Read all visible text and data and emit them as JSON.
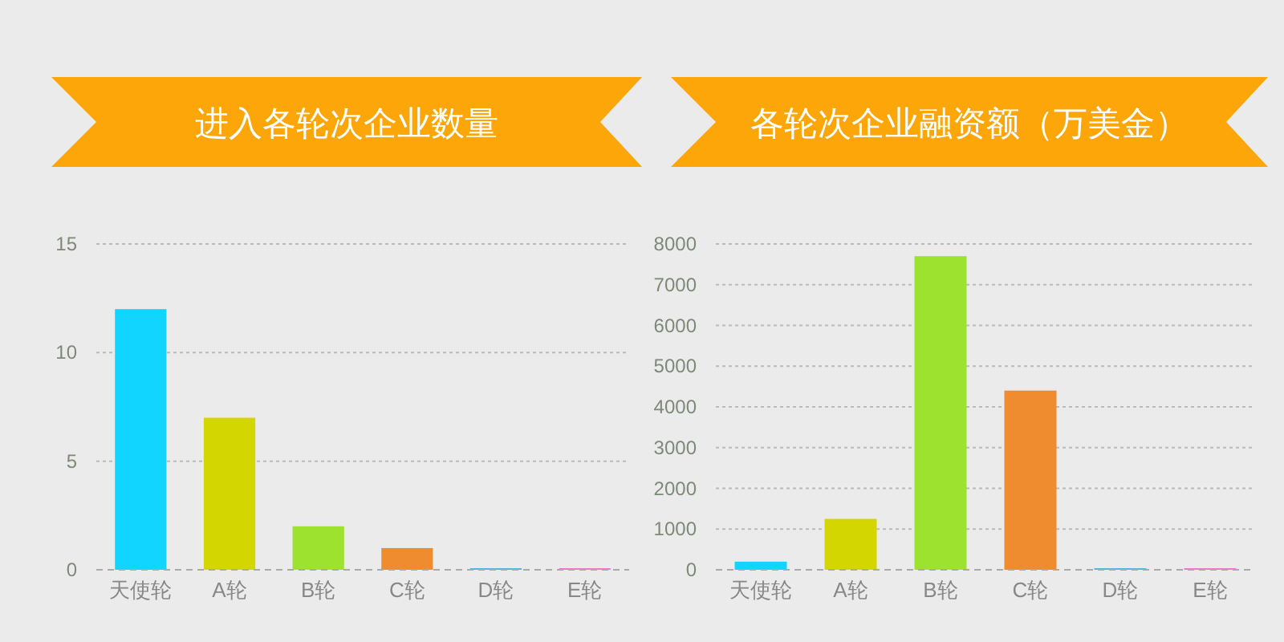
{
  "chart_data": [
    {
      "type": "bar",
      "title": "进入各轮次企业数量",
      "categories": [
        "天使轮",
        "A轮",
        "B轮",
        "C轮",
        "D轮",
        "E轮"
      ],
      "values": [
        12,
        7,
        2,
        1,
        0,
        0
      ],
      "colors": [
        "#12d5ff",
        "#d4d600",
        "#9de22e",
        "#ef8c2f",
        "#5ab4d6",
        "#e87ac8"
      ],
      "ylim": [
        0,
        15
      ],
      "yticks": [
        0,
        5,
        10,
        15
      ],
      "grid": "y"
    },
    {
      "type": "bar",
      "title": "各轮次企业融资额（万美金）",
      "categories": [
        "天使轮",
        "A轮",
        "B轮",
        "C轮",
        "D轮",
        "E轮"
      ],
      "values": [
        200,
        1250,
        7700,
        4400,
        0,
        0
      ],
      "colors": [
        "#12d5ff",
        "#d4d600",
        "#9de22e",
        "#ef8c2f",
        "#5ab4d6",
        "#e87ac8"
      ],
      "ylim": [
        0,
        8000
      ],
      "yticks": [
        0,
        1000,
        2000,
        3000,
        4000,
        5000,
        6000,
        7000,
        8000
      ],
      "grid": "y"
    }
  ]
}
